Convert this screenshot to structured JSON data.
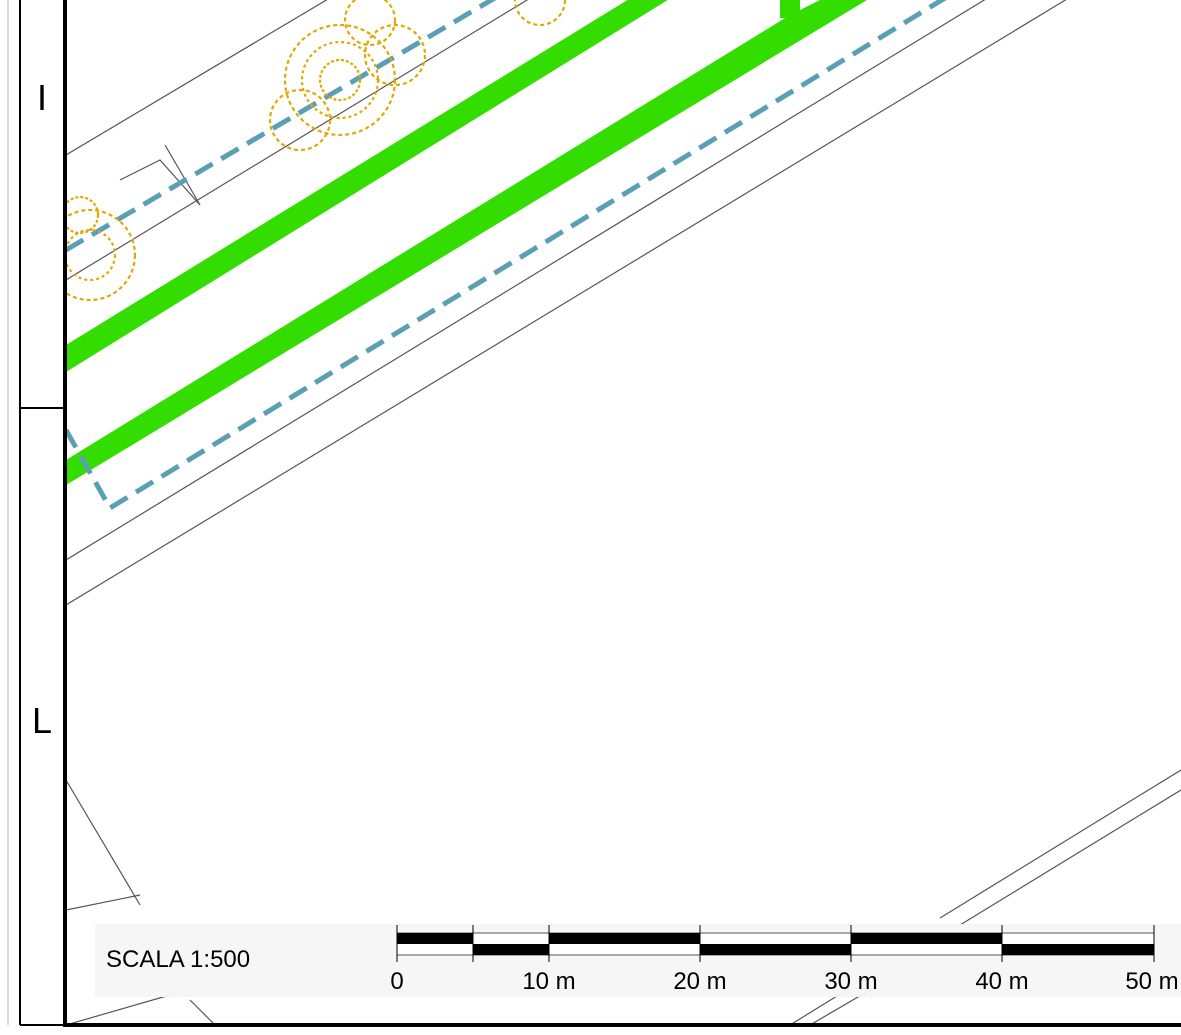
{
  "grid_rows": [
    {
      "label": "I"
    },
    {
      "label": "L"
    }
  ],
  "scale": {
    "title": "SCALA  1:500",
    "ticks": [
      "0",
      "10 m",
      "20 m",
      "30 m",
      "40 m",
      "50 m"
    ]
  },
  "colors": {
    "green_band": "#33dd00",
    "dashed_boundary": "#5b9fb5",
    "tree_symbol": "#e0a800",
    "parcel_line": "#555555",
    "frame": "#000000"
  },
  "legend_symbols": [
    "tree-icon"
  ]
}
